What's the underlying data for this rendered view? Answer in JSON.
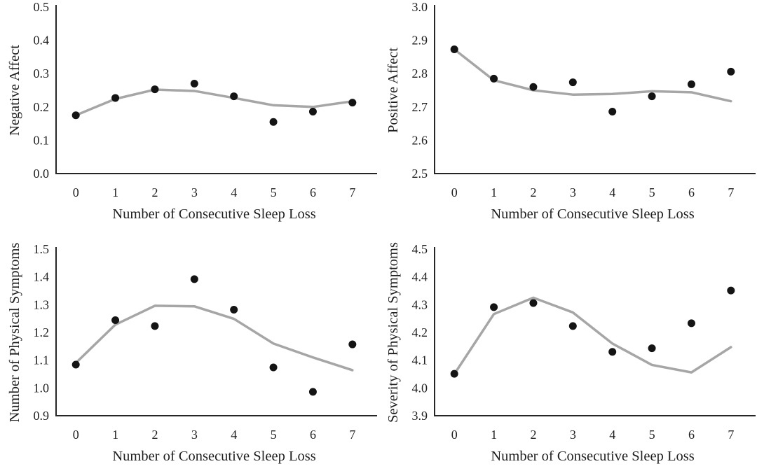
{
  "figure": {
    "background": "#ffffff",
    "colors": {
      "point": "#141414",
      "trend_line": "#a6a6a6",
      "axis": "#262626",
      "text": "#1f1f1f"
    }
  },
  "chart_data": [
    {
      "id": "negative-affect",
      "type": "scatter",
      "title": "",
      "xlabel": "Number of Consecutive Sleep Loss",
      "ylabel": "Negative Affect",
      "x": [
        0,
        1,
        2,
        3,
        4,
        5,
        6,
        7
      ],
      "x_tick_labels": [
        "0",
        "1",
        "2",
        "3",
        "4",
        "5",
        "6",
        "7"
      ],
      "ylim": [
        0.0,
        0.5
      ],
      "y_ticks": [
        0.0,
        0.1,
        0.2,
        0.3,
        0.4,
        0.5
      ],
      "y_tick_labels": [
        "0.0",
        "0.1",
        "0.2",
        "0.3",
        "0.4",
        "0.5"
      ],
      "grid": false,
      "legend": "none",
      "series": [
        {
          "name": "observed-points",
          "style": "points",
          "values": [
            0.175,
            0.227,
            0.253,
            0.27,
            0.232,
            0.155,
            0.186,
            0.213
          ]
        },
        {
          "name": "trend-line",
          "style": "line",
          "values": [
            0.175,
            0.224,
            0.252,
            0.248,
            0.227,
            0.205,
            0.2,
            0.217
          ]
        }
      ]
    },
    {
      "id": "positive-affect",
      "type": "scatter",
      "title": "",
      "xlabel": "Number of Consecutive Sleep Loss",
      "ylabel": "Positive Affect",
      "x": [
        0,
        1,
        2,
        3,
        4,
        5,
        6,
        7
      ],
      "x_tick_labels": [
        "0",
        "1",
        "2",
        "3",
        "4",
        "5",
        "6",
        "7"
      ],
      "ylim": [
        2.5,
        3.0
      ],
      "y_ticks": [
        2.5,
        2.6,
        2.7,
        2.8,
        2.9,
        3.0
      ],
      "y_tick_labels": [
        "2.5",
        "2.6",
        "2.7",
        "2.8",
        "2.9",
        "3.0"
      ],
      "grid": false,
      "legend": "none",
      "series": [
        {
          "name": "observed-points",
          "style": "points",
          "values": [
            2.873,
            2.785,
            2.76,
            2.774,
            2.686,
            2.732,
            2.768,
            2.806
          ]
        },
        {
          "name": "trend-line",
          "style": "line",
          "values": [
            2.873,
            2.78,
            2.75,
            2.737,
            2.739,
            2.747,
            2.744,
            2.717
          ]
        }
      ]
    },
    {
      "id": "number-of-physical-symptoms",
      "type": "scatter",
      "title": "",
      "xlabel": "Number of Consecutive Sleep Loss",
      "ylabel": "Number of Physical Symptoms",
      "x": [
        0,
        1,
        2,
        3,
        4,
        5,
        6,
        7
      ],
      "x_tick_labels": [
        "0",
        "1",
        "2",
        "3",
        "4",
        "5",
        "6",
        "7"
      ],
      "ylim": [
        0.9,
        1.5
      ],
      "y_ticks": [
        0.9,
        1.0,
        1.1,
        1.2,
        1.3,
        1.4,
        1.5
      ],
      "y_tick_labels": [
        "0.9",
        "1.0",
        "1.1",
        "1.2",
        "1.3",
        "1.4",
        "1.5"
      ],
      "grid": false,
      "legend": "none",
      "series": [
        {
          "name": "observed-points",
          "style": "points",
          "values": [
            1.084,
            1.244,
            1.223,
            1.392,
            1.282,
            1.074,
            0.986,
            1.157
          ]
        },
        {
          "name": "trend-line",
          "style": "line",
          "values": [
            1.09,
            1.228,
            1.296,
            1.294,
            1.249,
            1.16,
            1.11,
            1.064
          ]
        }
      ]
    },
    {
      "id": "severity-of-physical-symptoms",
      "type": "scatter",
      "title": "",
      "xlabel": "Number of Consecutive Sleep Loss",
      "ylabel": "Severity of Physical Symptoms",
      "x": [
        0,
        1,
        2,
        3,
        4,
        5,
        6,
        7
      ],
      "x_tick_labels": [
        "0",
        "1",
        "2",
        "3",
        "4",
        "5",
        "6",
        "7"
      ],
      "ylim": [
        3.9,
        4.5
      ],
      "y_ticks": [
        3.9,
        4.0,
        4.1,
        4.2,
        4.3,
        4.4,
        4.5
      ],
      "y_tick_labels": [
        "3.9",
        "4.0",
        "4.1",
        "4.2",
        "4.3",
        "4.4",
        "4.5"
      ],
      "grid": false,
      "legend": "none",
      "series": [
        {
          "name": "observed-points",
          "style": "points",
          "values": [
            4.051,
            4.291,
            4.306,
            4.223,
            4.13,
            4.143,
            4.233,
            4.351
          ]
        },
        {
          "name": "trend-line",
          "style": "line",
          "values": [
            4.05,
            4.266,
            4.325,
            4.272,
            4.16,
            4.083,
            4.056,
            4.147
          ]
        }
      ]
    }
  ]
}
